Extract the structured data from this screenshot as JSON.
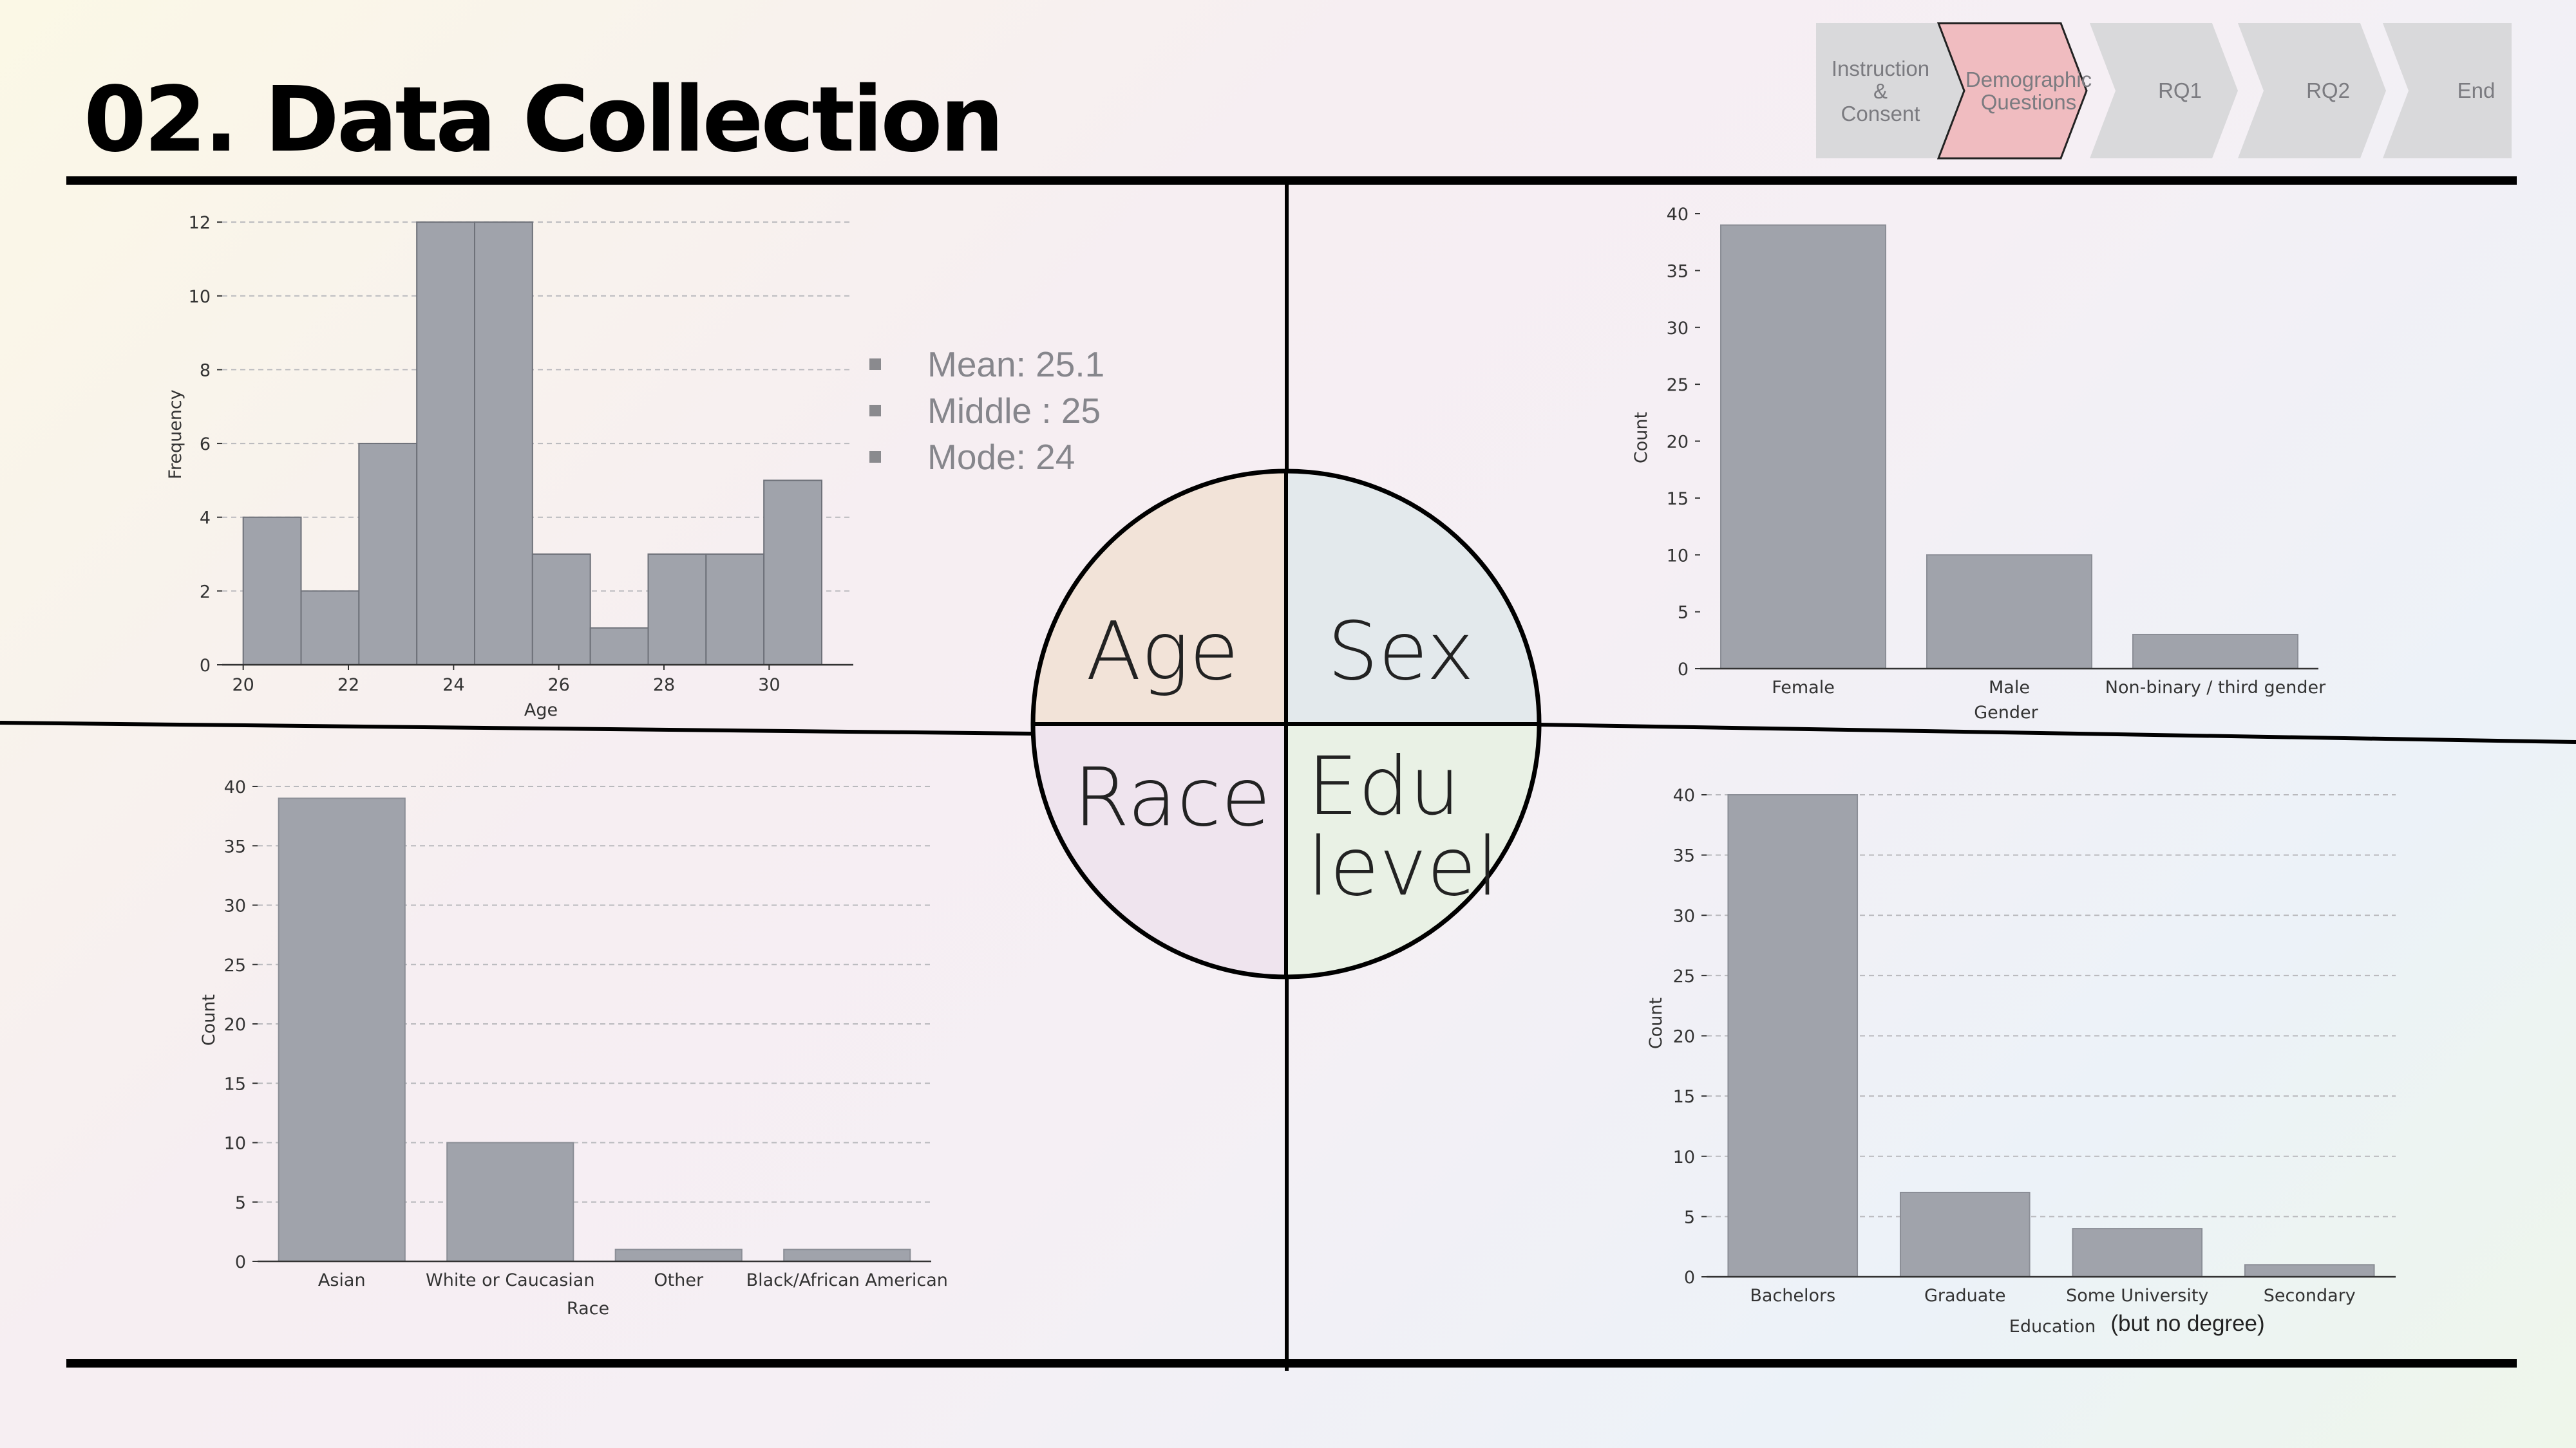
{
  "title": "02. Data Collection",
  "progress": {
    "steps": [
      "Instruction\n&\nConsent",
      "Demographic\nQuestions",
      "RQ1",
      "RQ2",
      "End"
    ],
    "active_index": 1,
    "inactive_color": "#d9d9db",
    "active_color": "#f0bcc0"
  },
  "age_stats": {
    "mean": "Mean: 25.1",
    "middle": "Middle : 25",
    "mode": "Mode: 24"
  },
  "quadrants": {
    "age": "Age",
    "sex": "Sex",
    "race": "Race",
    "edu_line1": "Edu",
    "edu_line2": "level",
    "colors": {
      "age": "#f2e3d8",
      "sex": "#e3e9ec",
      "race": "#efe4ee",
      "edu": "#e9f1e5"
    }
  },
  "bar_color": "#a0a3ab",
  "chart_data": [
    {
      "id": "age",
      "type": "bar",
      "title": "",
      "xlabel": "Age",
      "ylabel": "Frequency",
      "bin_edges": [
        20,
        21.1,
        22.2,
        23.3,
        24.4,
        25.5,
        26.6,
        27.7,
        28.8,
        29.9,
        31
      ],
      "values": [
        4,
        2,
        6,
        12,
        12,
        3,
        1,
        3,
        3,
        5
      ],
      "xlim": [
        19.6,
        31.6
      ],
      "ylim": [
        0,
        12.7
      ],
      "xticks": [
        20,
        22,
        24,
        26,
        28,
        30
      ],
      "yticks": [
        0,
        2,
        4,
        6,
        8,
        10,
        12
      ],
      "grid": true
    },
    {
      "id": "sex",
      "type": "bar",
      "title": "",
      "xlabel": "Gender",
      "ylabel": "Count",
      "categories": [
        "Female",
        "Male",
        "Non-binary / third gender"
      ],
      "values": [
        39,
        10,
        3
      ],
      "ylim": [
        0,
        40
      ],
      "yticks": [
        0,
        5,
        10,
        15,
        20,
        25,
        30,
        35,
        40
      ],
      "grid": false
    },
    {
      "id": "race",
      "type": "bar",
      "title": "",
      "xlabel": "Race",
      "ylabel": "Count",
      "categories": [
        "Asian",
        "White or Caucasian",
        "Other",
        "Black/African American"
      ],
      "values": [
        39,
        10,
        1,
        1
      ],
      "ylim": [
        0,
        40
      ],
      "yticks": [
        0,
        5,
        10,
        15,
        20,
        25,
        30,
        35,
        40
      ],
      "grid": true
    },
    {
      "id": "edu",
      "type": "bar",
      "title": "",
      "xlabel": "Education",
      "ylabel": "Count",
      "categories": [
        "Bachelors",
        "Graduate",
        "Some University",
        "Secondary"
      ],
      "category_note": "(but no degree)",
      "values": [
        40,
        7,
        4,
        1
      ],
      "ylim": [
        0,
        40
      ],
      "yticks": [
        0,
        5,
        10,
        15,
        20,
        25,
        30,
        35,
        40
      ],
      "grid": true
    }
  ]
}
